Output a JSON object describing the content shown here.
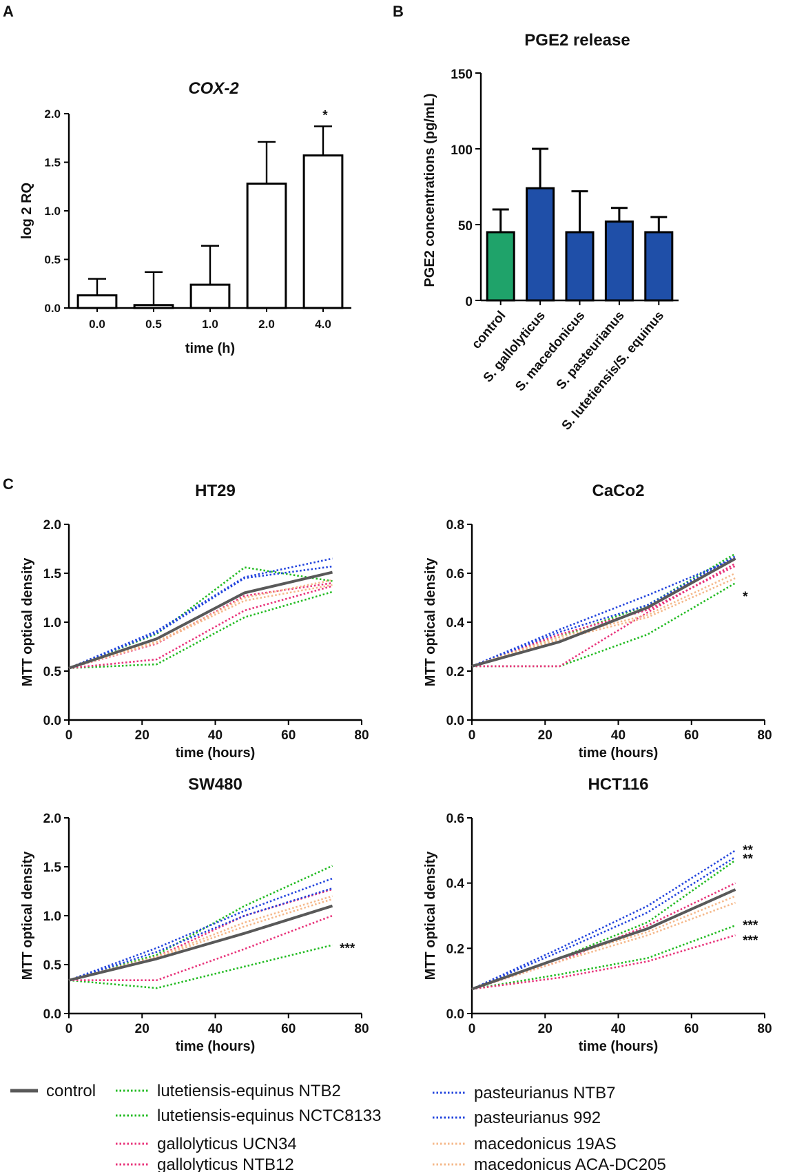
{
  "panel_labels": {
    "a": "A",
    "b": "B",
    "c": "C"
  },
  "colors": {
    "control": "#595959",
    "lutetiensis": "#22bb22",
    "gallolyticus": "#e8337a",
    "pasteurianus": "#2244dd",
    "macedonicus": "#f5b88a",
    "pge_control": "#1fa36a",
    "pge_bars": "#1f4fa8"
  },
  "chart_data": [
    {
      "id": "cox2",
      "type": "bar",
      "title": "COX-2",
      "xlabel": "time (h)",
      "ylabel": "log 2 RQ",
      "categories": [
        "0.0",
        "0.5",
        "1.0",
        "2.0",
        "4.0"
      ],
      "values": [
        0.13,
        0.03,
        0.24,
        1.28,
        1.57
      ],
      "errors": [
        0.17,
        0.34,
        0.4,
        0.43,
        0.3
      ],
      "significance": [
        "",
        "",
        "",
        "",
        "*"
      ],
      "ylim": [
        0,
        2.0
      ],
      "yticks": [
        "0.0",
        "0.5",
        "1.0",
        "1.5",
        "2.0"
      ],
      "ytick_values": [
        0,
        0.5,
        1.0,
        1.5,
        2.0
      ]
    },
    {
      "id": "pge2",
      "type": "bar",
      "title": "PGE2 release",
      "xlabel": "",
      "ylabel": "PGE2 concentrations (pg/mL)",
      "categories": [
        "control",
        "S. gallolyticus",
        "S. macedonicus",
        "S. pasteurianus",
        "S. lutetiensis/S. equinus"
      ],
      "values": [
        45,
        74,
        45,
        52,
        45
      ],
      "errors": [
        15,
        26,
        27,
        9,
        10
      ],
      "ylim": [
        0,
        150
      ],
      "yticks": [
        "0",
        "50",
        "100",
        "150"
      ],
      "ytick_values": [
        0,
        50,
        100,
        150
      ]
    },
    {
      "id": "ht29",
      "type": "line",
      "title": "HT29",
      "xlabel": "time (hours)",
      "ylabel": "MTT optical density",
      "x": [
        0,
        24,
        48,
        72
      ],
      "xlim": [
        0,
        80
      ],
      "xticks": [
        "0",
        "20",
        "40",
        "60",
        "80"
      ],
      "xtick_values": [
        0,
        20,
        40,
        60,
        80
      ],
      "ylim": [
        0,
        2.0
      ],
      "yticks": [
        "0.0",
        "0.5",
        "1.0",
        "1.5",
        "2.0"
      ],
      "ytick_values": [
        0,
        0.5,
        1.0,
        1.5,
        2.0
      ],
      "series": [
        {
          "name": "control",
          "group": "control",
          "values": [
            0.53,
            0.83,
            1.3,
            1.51
          ]
        },
        {
          "name": "lutetiensis-equinus NTB2",
          "group": "lutetiensis",
          "values": [
            0.53,
            0.88,
            1.56,
            1.42
          ]
        },
        {
          "name": "lutetiensis-equinus NCTC8133",
          "group": "lutetiensis",
          "values": [
            0.53,
            0.57,
            1.05,
            1.31
          ]
        },
        {
          "name": "gallolyticus UCN34",
          "group": "gallolyticus",
          "values": [
            0.53,
            0.78,
            1.27,
            1.4
          ]
        },
        {
          "name": "gallolyticus NTB12",
          "group": "gallolyticus",
          "values": [
            0.53,
            0.62,
            1.12,
            1.37
          ]
        },
        {
          "name": "pasteurianus NTB7",
          "group": "pasteurianus",
          "values": [
            0.53,
            0.91,
            1.46,
            1.65
          ]
        },
        {
          "name": "pasteurianus 992",
          "group": "pasteurianus",
          "values": [
            0.53,
            0.89,
            1.45,
            1.57
          ]
        },
        {
          "name": "macedonicus 19AS",
          "group": "macedonicus",
          "values": [
            0.53,
            0.8,
            1.25,
            1.43
          ]
        },
        {
          "name": "macedonicus ACA-DC205",
          "group": "macedonicus",
          "values": [
            0.53,
            0.79,
            1.22,
            1.38
          ]
        }
      ],
      "annotations": []
    },
    {
      "id": "caco2",
      "type": "line",
      "title": "CaCo2",
      "xlabel": "time (hours)",
      "ylabel": "MTT optical density",
      "x": [
        0,
        24,
        48,
        72
      ],
      "xlim": [
        0,
        80
      ],
      "xticks": [
        "0",
        "20",
        "40",
        "60",
        "80"
      ],
      "xtick_values": [
        0,
        20,
        40,
        60,
        80
      ],
      "ylim": [
        0,
        0.8
      ],
      "yticks": [
        "0.0",
        "0.2",
        "0.4",
        "0.6",
        "0.8"
      ],
      "ytick_values": [
        0,
        0.2,
        0.4,
        0.6,
        0.8
      ],
      "series": [
        {
          "name": "control",
          "group": "control",
          "values": [
            0.22,
            0.32,
            0.46,
            0.66
          ]
        },
        {
          "name": "lutetiensis-equinus NTB2",
          "group": "lutetiensis",
          "values": [
            0.22,
            0.34,
            0.47,
            0.68
          ]
        },
        {
          "name": "lutetiensis-equinus NCTC8133",
          "group": "lutetiensis",
          "values": [
            0.22,
            0.22,
            0.35,
            0.56
          ]
        },
        {
          "name": "gallolyticus UCN34",
          "group": "gallolyticus",
          "values": [
            0.22,
            0.22,
            0.44,
            0.64
          ]
        },
        {
          "name": "gallolyticus NTB12",
          "group": "gallolyticus",
          "values": [
            0.22,
            0.35,
            0.45,
            0.63
          ]
        },
        {
          "name": "pasteurianus NTB7",
          "group": "pasteurianus",
          "values": [
            0.22,
            0.37,
            0.51,
            0.66
          ]
        },
        {
          "name": "pasteurianus 992",
          "group": "pasteurianus",
          "values": [
            0.22,
            0.36,
            0.47,
            0.67
          ]
        },
        {
          "name": "macedonicus 19AS",
          "group": "macedonicus",
          "values": [
            0.22,
            0.34,
            0.43,
            0.6
          ]
        },
        {
          "name": "macedonicus ACA-DC205",
          "group": "macedonicus",
          "values": [
            0.22,
            0.33,
            0.42,
            0.58
          ]
        }
      ],
      "annotations": [
        {
          "text": "*",
          "x": 74,
          "y": 0.51
        }
      ]
    },
    {
      "id": "sw480",
      "type": "line",
      "title": "SW480",
      "xlabel": "time (hours)",
      "ylabel": "MTT optical density",
      "x": [
        0,
        24,
        48,
        72
      ],
      "xlim": [
        0,
        80
      ],
      "xticks": [
        "0",
        "20",
        "40",
        "60",
        "80"
      ],
      "xtick_values": [
        0,
        20,
        40,
        60,
        80
      ],
      "ylim": [
        0,
        2.0
      ],
      "yticks": [
        "0.0",
        "0.5",
        "1.0",
        "1.5",
        "2.0"
      ],
      "ytick_values": [
        0,
        0.5,
        1.0,
        1.5,
        2.0
      ],
      "series": [
        {
          "name": "control",
          "group": "control",
          "values": [
            0.34,
            0.56,
            0.82,
            1.1
          ]
        },
        {
          "name": "lutetiensis-equinus NTB2",
          "group": "lutetiensis",
          "values": [
            0.34,
            0.6,
            1.1,
            1.51
          ]
        },
        {
          "name": "lutetiensis-equinus NCTC8133",
          "group": "lutetiensis",
          "values": [
            0.34,
            0.26,
            0.48,
            0.7
          ]
        },
        {
          "name": "gallolyticus UCN34",
          "group": "gallolyticus",
          "values": [
            0.34,
            0.34,
            0.66,
            1.0
          ]
        },
        {
          "name": "gallolyticus NTB12",
          "group": "gallolyticus",
          "values": [
            0.34,
            0.58,
            1.0,
            1.27
          ]
        },
        {
          "name": "pasteurianus NTB7",
          "group": "pasteurianus",
          "values": [
            0.34,
            0.67,
            1.05,
            1.38
          ]
        },
        {
          "name": "pasteurianus 992",
          "group": "pasteurianus",
          "values": [
            0.34,
            0.63,
            1.0,
            1.28
          ]
        },
        {
          "name": "macedonicus 19AS",
          "group": "macedonicus",
          "values": [
            0.34,
            0.58,
            0.93,
            1.2
          ]
        },
        {
          "name": "macedonicus ACA-DC205",
          "group": "macedonicus",
          "values": [
            0.34,
            0.57,
            0.89,
            1.17
          ]
        }
      ],
      "annotations": [
        {
          "text": "***",
          "x": 74,
          "y": 0.68
        }
      ]
    },
    {
      "id": "hct116",
      "type": "line",
      "title": "HCT116",
      "xlabel": "time (hours)",
      "ylabel": "MTT optical density",
      "x": [
        0,
        24,
        48,
        72
      ],
      "xlim": [
        0,
        80
      ],
      "xticks": [
        "0",
        "20",
        "40",
        "60",
        "80"
      ],
      "xtick_values": [
        0,
        20,
        40,
        60,
        80
      ],
      "ylim": [
        0,
        0.6
      ],
      "yticks": [
        "0.0",
        "0.2",
        "0.4",
        "0.6"
      ],
      "ytick_values": [
        0,
        0.2,
        0.4,
        0.6
      ],
      "series": [
        {
          "name": "control",
          "group": "control",
          "values": [
            0.075,
            0.17,
            0.26,
            0.38
          ]
        },
        {
          "name": "lutetiensis-equinus NTB2",
          "group": "lutetiensis",
          "values": [
            0.075,
            0.17,
            0.28,
            0.47
          ]
        },
        {
          "name": "lutetiensis-equinus NCTC8133",
          "group": "lutetiensis",
          "values": [
            0.075,
            0.12,
            0.17,
            0.27
          ]
        },
        {
          "name": "gallolyticus UCN34",
          "group": "gallolyticus",
          "values": [
            0.075,
            0.11,
            0.16,
            0.24
          ]
        },
        {
          "name": "gallolyticus NTB12",
          "group": "gallolyticus",
          "values": [
            0.075,
            0.16,
            0.27,
            0.4
          ]
        },
        {
          "name": "pasteurianus NTB7",
          "group": "pasteurianus",
          "values": [
            0.075,
            0.2,
            0.33,
            0.5
          ]
        },
        {
          "name": "pasteurianus 992",
          "group": "pasteurianus",
          "values": [
            0.075,
            0.19,
            0.31,
            0.48
          ]
        },
        {
          "name": "macedonicus 19AS",
          "group": "macedonicus",
          "values": [
            0.075,
            0.17,
            0.25,
            0.36
          ]
        },
        {
          "name": "macedonicus ACA-DC205",
          "group": "macedonicus",
          "values": [
            0.075,
            0.16,
            0.24,
            0.34
          ]
        }
      ],
      "annotations": [
        {
          "text": "**",
          "x": 74,
          "y": 0.505
        },
        {
          "text": "**",
          "x": 74,
          "y": 0.478
        },
        {
          "text": "***",
          "x": 74,
          "y": 0.275
        },
        {
          "text": "***",
          "x": 74,
          "y": 0.228
        }
      ]
    }
  ],
  "legend": [
    {
      "label": "control",
      "group": "control"
    },
    {
      "label": "lutetiensis-equinus NTB2",
      "group": "lutetiensis"
    },
    {
      "label": "lutetiensis-equinus NCTC8133",
      "group": "lutetiensis"
    },
    {
      "label": "gallolyticus UCN34",
      "group": "gallolyticus"
    },
    {
      "label": "gallolyticus NTB12",
      "group": "gallolyticus"
    },
    {
      "label": "pasteurianus NTB7",
      "group": "pasteurianus"
    },
    {
      "label": "pasteurianus 992",
      "group": "pasteurianus"
    },
    {
      "label": "macedonicus 19AS",
      "group": "macedonicus"
    },
    {
      "label": "macedonicus ACA-DC205",
      "group": "macedonicus"
    }
  ]
}
